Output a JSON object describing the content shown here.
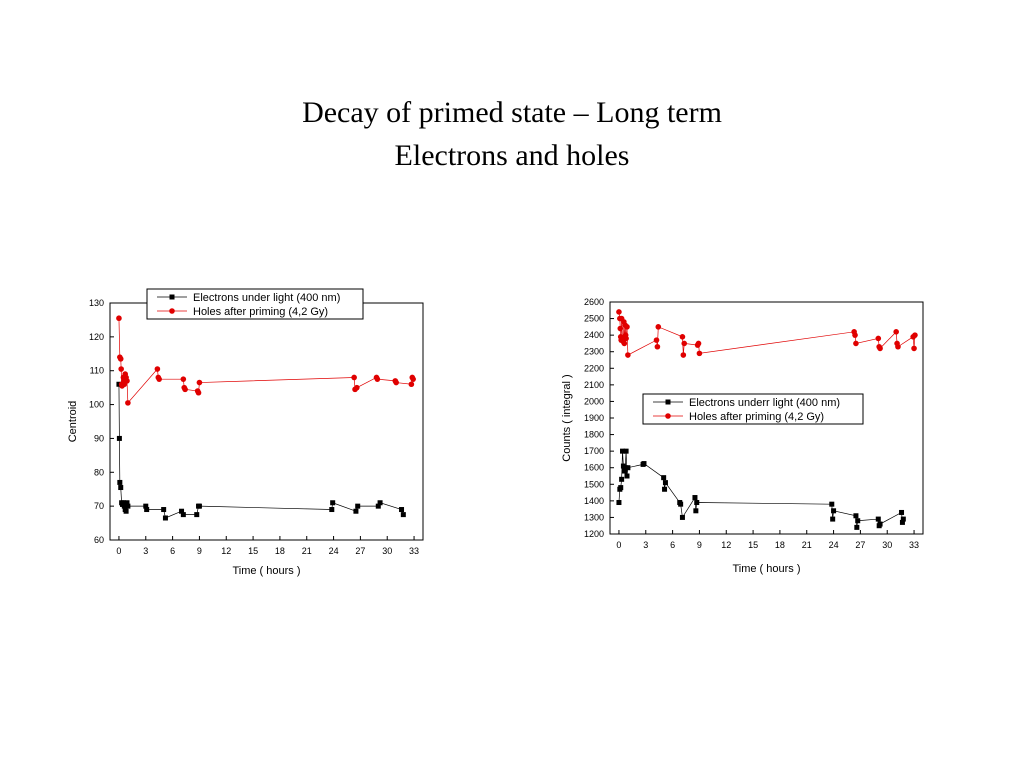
{
  "slide": {
    "title_line1": "Decay of primed state – Long term",
    "title_line2": "Electrons and holes"
  },
  "colors": {
    "electrons": "#000000",
    "holes": "#e00000"
  },
  "chart_data": [
    {
      "type": "scatter",
      "xlabel": "Time ( hours )",
      "ylabel": "Centroid",
      "xlim": [
        -1,
        34
      ],
      "ylim": [
        60,
        130
      ],
      "xticks": [
        0,
        3,
        6,
        9,
        12,
        15,
        18,
        21,
        24,
        27,
        30,
        33
      ],
      "yticks": [
        60,
        70,
        80,
        90,
        100,
        110,
        120,
        130
      ],
      "legend_position": "top-center",
      "series": [
        {
          "name": "Electrons under light (400 nm)",
          "marker": "square",
          "color": "#000000",
          "points": [
            [
              0,
              106
            ],
            [
              0.05,
              90
            ],
            [
              0.1,
              77
            ],
            [
              0.2,
              75.5
            ],
            [
              0.3,
              71
            ],
            [
              0.4,
              70.5
            ],
            [
              0.5,
              71
            ],
            [
              0.6,
              70
            ],
            [
              0.7,
              69
            ],
            [
              0.8,
              68.5
            ],
            [
              0.9,
              71
            ],
            [
              1.0,
              70
            ],
            [
              3,
              70
            ],
            [
              3.1,
              69
            ],
            [
              5,
              69
            ],
            [
              5.2,
              66.5
            ],
            [
              7,
              68.5
            ],
            [
              7.2,
              67.5
            ],
            [
              8.7,
              67.5
            ],
            [
              8.9,
              70
            ],
            [
              9,
              70
            ],
            [
              23.8,
              69
            ],
            [
              23.9,
              71
            ],
            [
              26.5,
              68.5
            ],
            [
              26.7,
              70
            ],
            [
              29,
              70
            ],
            [
              29.2,
              71
            ],
            [
              31.6,
              69
            ],
            [
              31.8,
              67.5
            ]
          ]
        },
        {
          "name": "Holes after priming (4,2 Gy)",
          "marker": "circle",
          "color": "#e00000",
          "points": [
            [
              0,
              125.5
            ],
            [
              0.1,
              114
            ],
            [
              0.2,
              113.5
            ],
            [
              0.25,
              110.5
            ],
            [
              0.3,
              106
            ],
            [
              0.35,
              105.5
            ],
            [
              0.5,
              108
            ],
            [
              0.55,
              107
            ],
            [
              0.6,
              106
            ],
            [
              0.7,
              109
            ],
            [
              0.8,
              108
            ],
            [
              0.9,
              107
            ],
            [
              1.0,
              100.5
            ],
            [
              4.3,
              110.5
            ],
            [
              4.4,
              108
            ],
            [
              4.5,
              107.5
            ],
            [
              7.2,
              107.5
            ],
            [
              7.3,
              105
            ],
            [
              7.4,
              104.5
            ],
            [
              8.8,
              104
            ],
            [
              8.9,
              103.5
            ],
            [
              9,
              106.5
            ],
            [
              26.3,
              108
            ],
            [
              26.4,
              104.5
            ],
            [
              26.6,
              105
            ],
            [
              28.8,
              108
            ],
            [
              28.9,
              107.5
            ],
            [
              30.9,
              107
            ],
            [
              31.0,
              106.5
            ],
            [
              32.7,
              106
            ],
            [
              32.8,
              108
            ],
            [
              32.9,
              107.5
            ]
          ]
        }
      ]
    },
    {
      "type": "scatter",
      "xlabel": "Time ( hours )",
      "ylabel": "Counts ( integral )",
      "xlim": [
        -1,
        34
      ],
      "ylim": [
        1200,
        2600
      ],
      "xticks": [
        0,
        3,
        6,
        9,
        12,
        15,
        18,
        21,
        24,
        27,
        30,
        33
      ],
      "yticks": [
        1200,
        1300,
        1400,
        1500,
        1600,
        1700,
        1800,
        1900,
        2000,
        2100,
        2200,
        2300,
        2400,
        2500,
        2600
      ],
      "legend_position": "center-right",
      "series": [
        {
          "name": "Electrons underr light (400 nm)",
          "marker": "square",
          "color": "#000000",
          "points": [
            [
              0,
              1390
            ],
            [
              0.1,
              1470
            ],
            [
              0.2,
              1480
            ],
            [
              0.3,
              1530
            ],
            [
              0.4,
              1700
            ],
            [
              0.5,
              1610
            ],
            [
              0.6,
              1580
            ],
            [
              0.7,
              1600
            ],
            [
              0.8,
              1700
            ],
            [
              0.9,
              1550
            ],
            [
              1.0,
              1600
            ],
            [
              2.7,
              1620
            ],
            [
              2.8,
              1625
            ],
            [
              5,
              1540
            ],
            [
              5.1,
              1470
            ],
            [
              5.2,
              1510
            ],
            [
              6.8,
              1390
            ],
            [
              6.9,
              1380
            ],
            [
              7.1,
              1300
            ],
            [
              8.5,
              1420
            ],
            [
              8.6,
              1340
            ],
            [
              8.7,
              1390
            ],
            [
              23.8,
              1380
            ],
            [
              23.9,
              1290
            ],
            [
              24.0,
              1340
            ],
            [
              26.5,
              1310
            ],
            [
              26.6,
              1240
            ],
            [
              26.7,
              1280
            ],
            [
              29,
              1290
            ],
            [
              29.1,
              1250
            ],
            [
              29.2,
              1260
            ],
            [
              31.6,
              1330
            ],
            [
              31.7,
              1270
            ],
            [
              31.8,
              1290
            ]
          ]
        },
        {
          "name": "Holes after priming (4,2 Gy)",
          "marker": "circle",
          "color": "#e00000",
          "points": [
            [
              0,
              2540
            ],
            [
              0.1,
              2500
            ],
            [
              0.15,
              2440
            ],
            [
              0.2,
              2390
            ],
            [
              0.25,
              2370
            ],
            [
              0.3,
              2500
            ],
            [
              0.4,
              2380
            ],
            [
              0.5,
              2360
            ],
            [
              0.55,
              2480
            ],
            [
              0.6,
              2350
            ],
            [
              0.7,
              2460
            ],
            [
              0.75,
              2400
            ],
            [
              0.8,
              2380
            ],
            [
              0.9,
              2450
            ],
            [
              1.0,
              2280
            ],
            [
              4.2,
              2370
            ],
            [
              4.3,
              2330
            ],
            [
              4.4,
              2450
            ],
            [
              7.1,
              2390
            ],
            [
              7.2,
              2280
            ],
            [
              7.3,
              2350
            ],
            [
              8.8,
              2340
            ],
            [
              8.9,
              2350
            ],
            [
              9.0,
              2290
            ],
            [
              26.3,
              2420
            ],
            [
              26.4,
              2400
            ],
            [
              26.5,
              2350
            ],
            [
              29,
              2380
            ],
            [
              29.1,
              2330
            ],
            [
              29.2,
              2320
            ],
            [
              31.0,
              2420
            ],
            [
              31.1,
              2350
            ],
            [
              31.2,
              2330
            ],
            [
              32.9,
              2390
            ],
            [
              33.0,
              2320
            ],
            [
              33.1,
              2400
            ]
          ]
        }
      ]
    }
  ]
}
